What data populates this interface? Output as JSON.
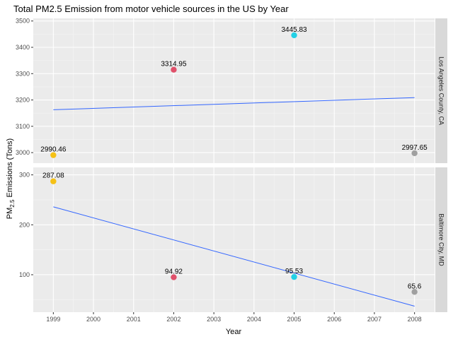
{
  "chart_data": {
    "type": "scatter",
    "title": "Total PM2.5 Emission from motor vehicle sources in the US by Year",
    "xlabel": "Year",
    "ylabel_main": "PM",
    "ylabel_sub": "2.5",
    "ylabel_rest": " Emissions (Tons)",
    "xlim": [
      1998.5,
      2008.5
    ],
    "x_ticks": [
      1999,
      2000,
      2001,
      2002,
      2003,
      2004,
      2005,
      2006,
      2007,
      2008
    ],
    "panels": [
      {
        "strip": "Los Angeles County, CA",
        "ylim": [
          2960,
          3510
        ],
        "y_ticks": [
          3000,
          3100,
          3200,
          3300,
          3400,
          3500
        ],
        "points": [
          {
            "x": 1999,
            "y": 2990.46,
            "label": "2990.46",
            "color": "#f5c116"
          },
          {
            "x": 2002,
            "y": 3314.95,
            "label": "3314.95",
            "color": "#e0506a"
          },
          {
            "x": 2005,
            "y": 3445.83,
            "label": "3445.83",
            "color": "#22d0e5"
          },
          {
            "x": 2008,
            "y": 2997.65,
            "label": "2997.65",
            "color": "#a0a0a0"
          }
        ],
        "trend": {
          "x": [
            1999,
            2008
          ],
          "y": [
            3163.0,
            3209.0
          ]
        }
      },
      {
        "strip": "Baltimore City, MD",
        "ylim": [
          25,
          315
        ],
        "y_ticks": [
          100,
          200,
          300
        ],
        "points": [
          {
            "x": 1999,
            "y": 287.08,
            "label": "287.08",
            "color": "#f5c116"
          },
          {
            "x": 2002,
            "y": 94.92,
            "label": "94.92",
            "color": "#e0506a"
          },
          {
            "x": 2005,
            "y": 95.53,
            "label": "95.53",
            "color": "#22d0e5"
          },
          {
            "x": 2008,
            "y": 65.6,
            "label": "65.6",
            "color": "#a0a0a0"
          }
        ],
        "trend": {
          "x": [
            1999,
            2008
          ],
          "y": [
            236.0,
            37.0
          ]
        }
      }
    ],
    "grid": true,
    "legend": "none"
  },
  "colors": {
    "panel_background": "#ebebeb",
    "strip_background": "#d9d9d9",
    "trend_line": "#3366ff"
  }
}
